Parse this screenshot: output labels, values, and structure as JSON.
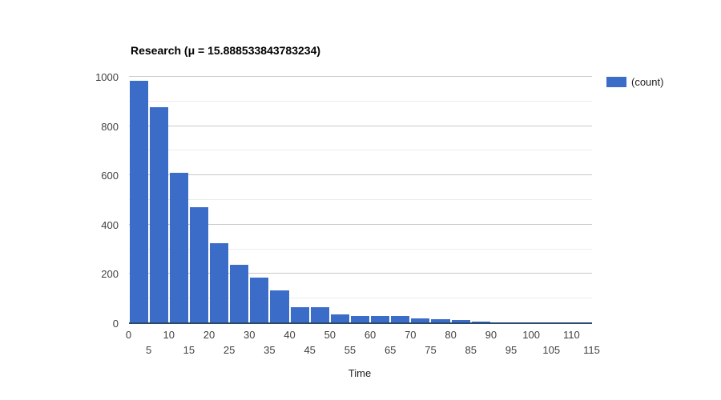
{
  "chart": {
    "title": "Research (μ = 15.888533843783234)",
    "legend_label": "(count)",
    "xlabel": "Time"
  },
  "colors": {
    "bar": "#3b6cc8",
    "baseline": "#2b4a70",
    "grid_major": "#c9c9c9",
    "grid_minor": "#ebebeb",
    "tick_text": "#404040",
    "title_text": "#000000"
  },
  "chart_data": {
    "type": "bar",
    "subtype": "histogram",
    "title": "Research (μ = 15.888533843783234)",
    "xlabel": "Time",
    "ylabel": "",
    "legend": [
      "(count)"
    ],
    "legend_position": "top-right",
    "grid": "horizontal, minor every 100, major every 200",
    "xlim": [
      0,
      115
    ],
    "ylim": [
      0,
      1000
    ],
    "y_ticks": [
      0,
      200,
      400,
      600,
      800,
      1000
    ],
    "x_ticks": [
      0,
      5,
      10,
      15,
      20,
      25,
      30,
      35,
      40,
      45,
      50,
      55,
      60,
      65,
      70,
      75,
      80,
      85,
      90,
      95,
      100,
      105,
      110,
      115
    ],
    "x_tick_stagger": "even indices on upper row, odd indices on lower row",
    "bin_width": 5,
    "bin_starts": [
      0,
      5,
      10,
      15,
      20,
      25,
      30,
      35,
      40,
      45,
      50,
      55,
      60,
      65,
      70,
      75,
      80,
      85,
      90,
      95,
      100,
      105,
      110
    ],
    "values": [
      985,
      877,
      611,
      470,
      324,
      238,
      184,
      134,
      66,
      64,
      35,
      29,
      29,
      30,
      19,
      17,
      12,
      7,
      2,
      1,
      1,
      1,
      1
    ]
  }
}
